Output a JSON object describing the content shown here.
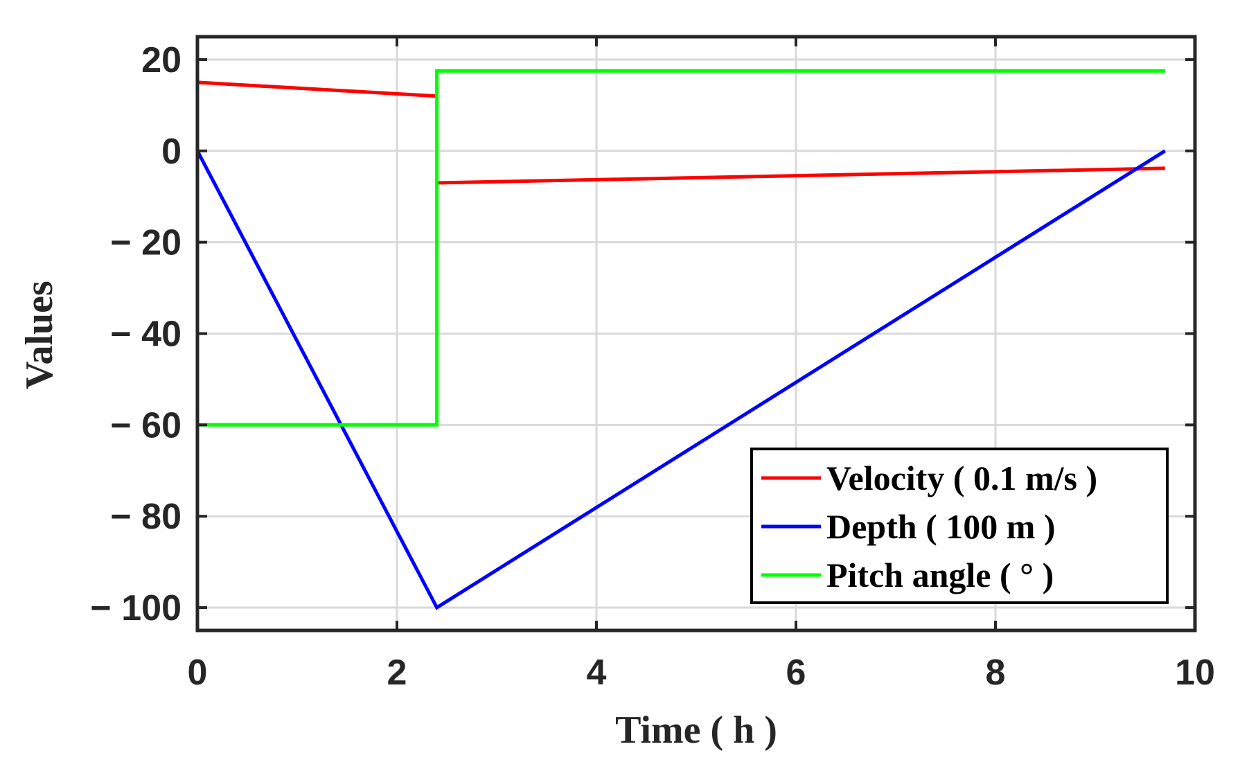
{
  "chart_data": {
    "type": "line",
    "title": "",
    "xlabel": "Time ( h )",
    "ylabel": "Values",
    "xlim": [
      0,
      10
    ],
    "ylim": [
      -105,
      25
    ],
    "xticks": [
      0,
      2,
      4,
      6,
      8,
      10
    ],
    "xtick_labels": [
      "0",
      "2",
      "4",
      "6",
      "8",
      "10"
    ],
    "yticks": [
      20,
      0,
      -20,
      -40,
      -60,
      -80,
      -100
    ],
    "ytick_labels": [
      "20",
      "0",
      "− 20",
      "− 40",
      "− 60",
      "− 80",
      "− 100"
    ],
    "grid": true,
    "legend_position": "bottom-right",
    "series": [
      {
        "name": "Velocity ( 0.1 m/s )",
        "color": "#ff0000",
        "segments": [
          [
            [
              0,
              15
            ],
            [
              2.4,
              12
            ]
          ],
          [
            [
              2.4,
              -7
            ],
            [
              9.7,
              -3.8
            ]
          ]
        ]
      },
      {
        "name": "Depth ( 100 m )",
        "color": "#0000ff",
        "segments": [
          [
            [
              0,
              0
            ],
            [
              2.4,
              -100
            ],
            [
              9.7,
              0
            ]
          ]
        ]
      },
      {
        "name": "Pitch angle ( ° )",
        "color": "#00ff00",
        "segments": [
          [
            [
              0,
              -60
            ],
            [
              2.4,
              -60
            ],
            [
              2.4,
              17.5
            ],
            [
              9.7,
              17.5
            ]
          ]
        ]
      }
    ]
  }
}
